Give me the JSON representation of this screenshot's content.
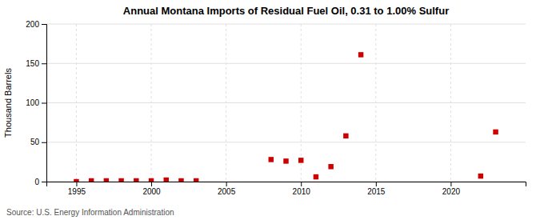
{
  "chart_data": {
    "type": "scatter",
    "title": "Annual Montana Imports of Residual Fuel Oil, 0.31 to 1.00% Sulfur",
    "ylabel": "Thousand Barrels",
    "annotation": "Source: U.S. Energy Information Administration",
    "x": [
      1995,
      1996,
      1997,
      1998,
      1999,
      2000,
      2001,
      2002,
      2003,
      2008,
      2009,
      2010,
      2011,
      2012,
      2013,
      2014,
      2022,
      2023
    ],
    "values": [
      0,
      1,
      1,
      1,
      1,
      1,
      2,
      1,
      1,
      28,
      26,
      27,
      6,
      19,
      58,
      161,
      7,
      63
    ],
    "color": "#cc0000",
    "marker": "square",
    "xlim": [
      1993,
      2025
    ],
    "xticks": [
      1995,
      2000,
      2005,
      2010,
      2015,
      2020
    ],
    "ylim": [
      0,
      200
    ],
    "yticks": [
      0,
      50,
      100,
      150,
      200
    ],
    "grid": true
  }
}
